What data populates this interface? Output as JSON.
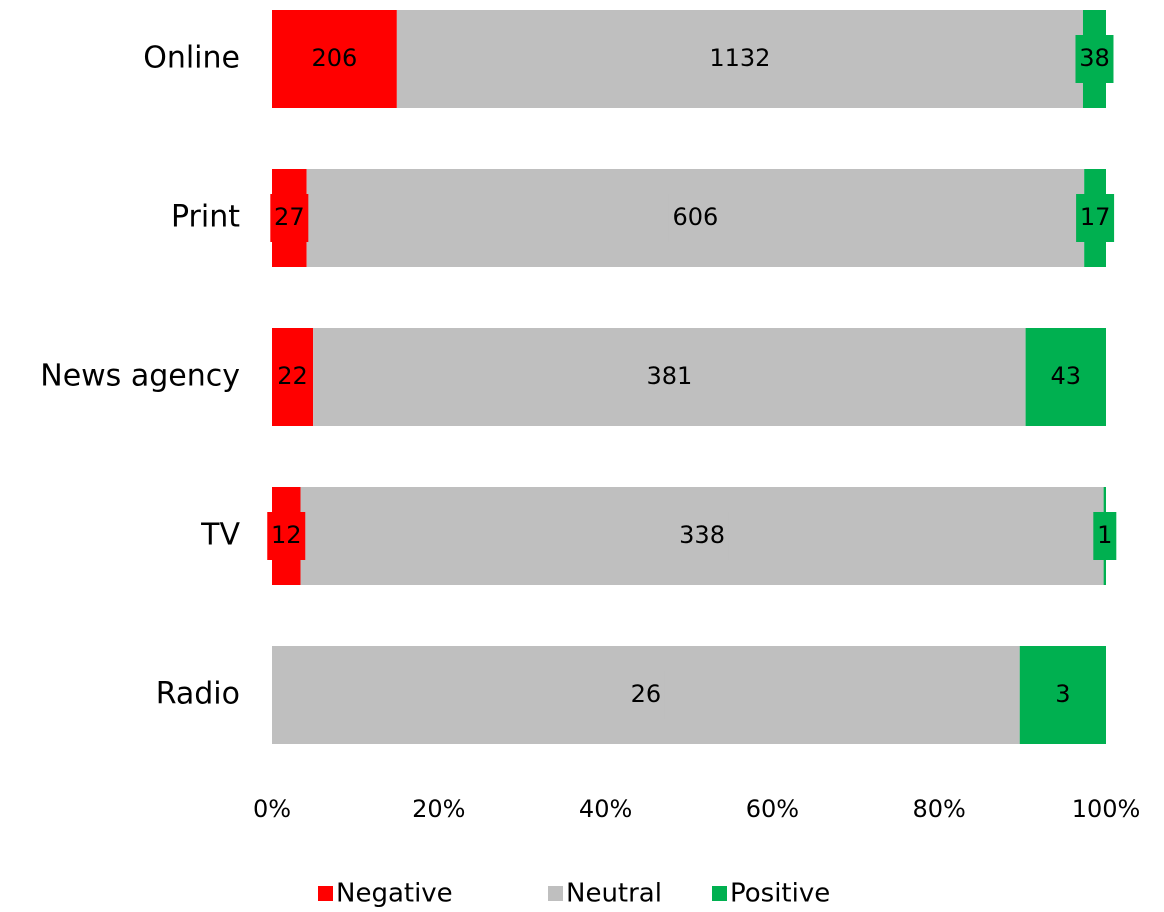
{
  "chart_data": {
    "type": "bar",
    "orientation": "horizontal",
    "stacking": "percent",
    "categories": [
      "Online",
      "Print",
      "News agency",
      "TV",
      "Radio"
    ],
    "series": [
      {
        "name": "Negative",
        "color": "#ff0000",
        "values": [
          206,
          27,
          22,
          12,
          0
        ]
      },
      {
        "name": "Neutral",
        "color": "#bfbfbf",
        "values": [
          1132,
          606,
          381,
          338,
          26
        ]
      },
      {
        "name": "Positive",
        "color": "#00b050",
        "values": [
          38,
          17,
          43,
          1,
          3
        ]
      }
    ],
    "xlim": [
      0,
      100
    ],
    "xticks": [
      {
        "value": 0,
        "label": "0%"
      },
      {
        "value": 20,
        "label": "20%"
      },
      {
        "value": 40,
        "label": "40%"
      },
      {
        "value": 60,
        "label": "60%"
      },
      {
        "value": 80,
        "label": "80%"
      },
      {
        "value": 100,
        "label": "100%"
      }
    ],
    "legend": "bottom"
  }
}
